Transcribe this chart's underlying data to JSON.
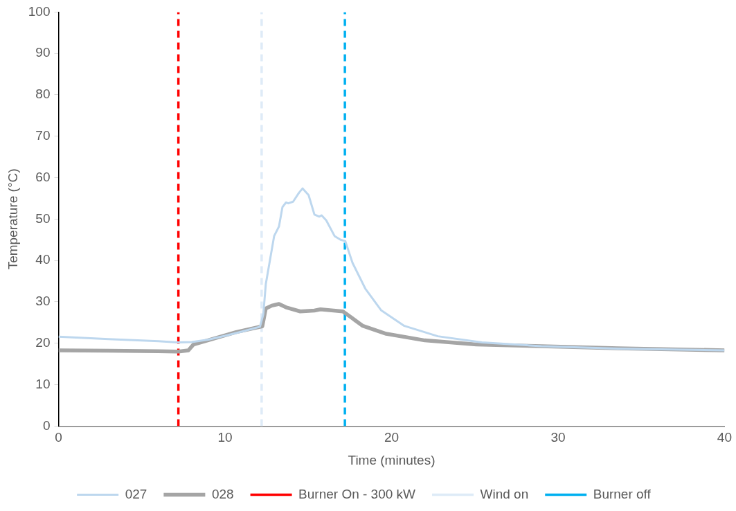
{
  "chart_data": {
    "type": "line",
    "xlabel": "Time (minutes)",
    "ylabel": "Temperature (°C)",
    "xlim": [
      0,
      40
    ],
    "xticks": [
      0,
      10,
      20,
      30,
      40
    ],
    "ylim": [
      0,
      100
    ],
    "yticks": [
      0,
      10,
      20,
      30,
      40,
      50,
      60,
      70,
      80,
      90,
      100
    ],
    "grid": false,
    "legend": "bottom",
    "marker": "none",
    "line_style": "solid",
    "series": [
      {
        "name": "027",
        "color": "#bdd7ee",
        "x": [
          0,
          3,
          6,
          7.2,
          8,
          9,
          10,
          11,
          12.1,
          12.3,
          12.45,
          12.95,
          13.24,
          13.45,
          13.66,
          13.8,
          14.09,
          14.45,
          14.66,
          15.02,
          15.37,
          15.66,
          15.8,
          16.08,
          16.58,
          16.94,
          17.22,
          17.66,
          18.44,
          19.37,
          20.77,
          22.78,
          25.43,
          29,
          33.6,
          40
        ],
        "values": [
          21.6,
          21,
          20.5,
          20.2,
          20.3,
          20.9,
          21.8,
          22.8,
          24,
          27,
          34.3,
          45.9,
          48.2,
          52.9,
          54,
          53.8,
          54.2,
          56.4,
          57.4,
          55.8,
          51.1,
          50.6,
          50.9,
          49.7,
          45.9,
          45,
          44.7,
          39.4,
          33.1,
          28,
          24.2,
          21.7,
          20.2,
          19.3,
          18.7,
          18.3
        ]
      },
      {
        "name": "028",
        "color": "#a5a5a5",
        "x": [
          0,
          3,
          6,
          7.2,
          7.8,
          8.1,
          10.67,
          12.24,
          12.45,
          12.81,
          13.24,
          13.66,
          14.52,
          15.37,
          15.73,
          17.08,
          18.28,
          19.68,
          22,
          25.1,
          29,
          33.6,
          40
        ],
        "values": [
          18.3,
          18.2,
          18.1,
          18,
          18.3,
          19.7,
          22.7,
          24.1,
          28.4,
          29.1,
          29.5,
          28.7,
          27.7,
          27.9,
          28.2,
          27.7,
          24.2,
          22.3,
          20.7,
          19.7,
          19.3,
          18.8,
          18.3
        ]
      }
    ],
    "ref_lines": [
      {
        "axis": "x",
        "value": 7.2,
        "label": "Burner On - 300 kW",
        "color": "#ff0000",
        "line_style": "dashed"
      },
      {
        "axis": "x",
        "value": 12.2,
        "label": "Wind on",
        "color": "#deebf7",
        "line_style": "dashed"
      },
      {
        "axis": "x",
        "value": 17.2,
        "label": "Burner off",
        "color": "#00b0f0",
        "line_style": "dashed"
      }
    ]
  }
}
